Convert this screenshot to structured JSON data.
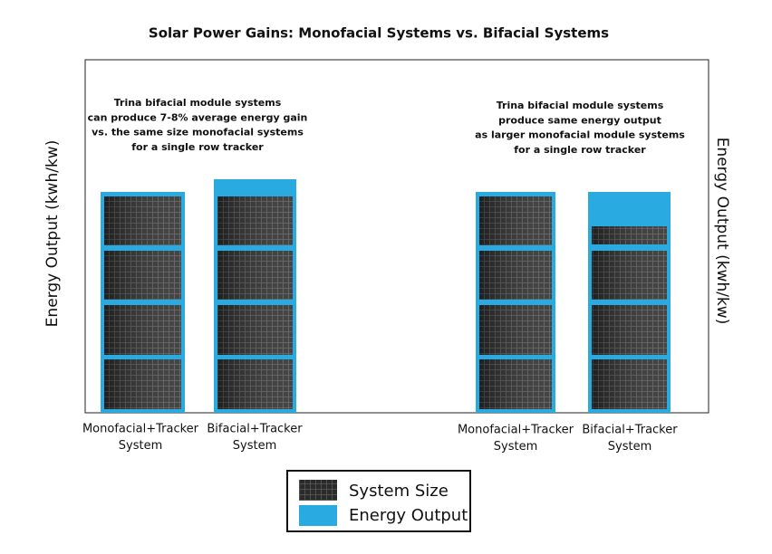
{
  "title": "Solar Power Gains: Monofacial Systems vs. Bifacial Systems",
  "axis_left_label": "Energy Output (kwh/kw)",
  "axis_right_label": "Energy Output (kwh/kw)",
  "annotations": [
    {
      "lines": [
        "Trina bifacial module systems",
        "can produce 7-8% average energy gain",
        "vs. the same size monofacial systems",
        "for a single row tracker"
      ]
    },
    {
      "lines": [
        "Trina bifacial module systems",
        "produce same energy output",
        "as larger monofacial module systems",
        "for a single row tracker"
      ]
    }
  ],
  "systems": [
    {
      "label": [
        "Monofacial+Tracker",
        "System"
      ]
    },
    {
      "label": [
        "Bifacial+Tracker",
        "System"
      ]
    },
    {
      "label": [
        "Monofacial+Tracker",
        "System"
      ]
    },
    {
      "label": [
        "Bifacial+Tracker",
        "System"
      ]
    }
  ],
  "legend": [
    {
      "label": "System Size"
    },
    {
      "label": "Energy Output"
    }
  ]
}
